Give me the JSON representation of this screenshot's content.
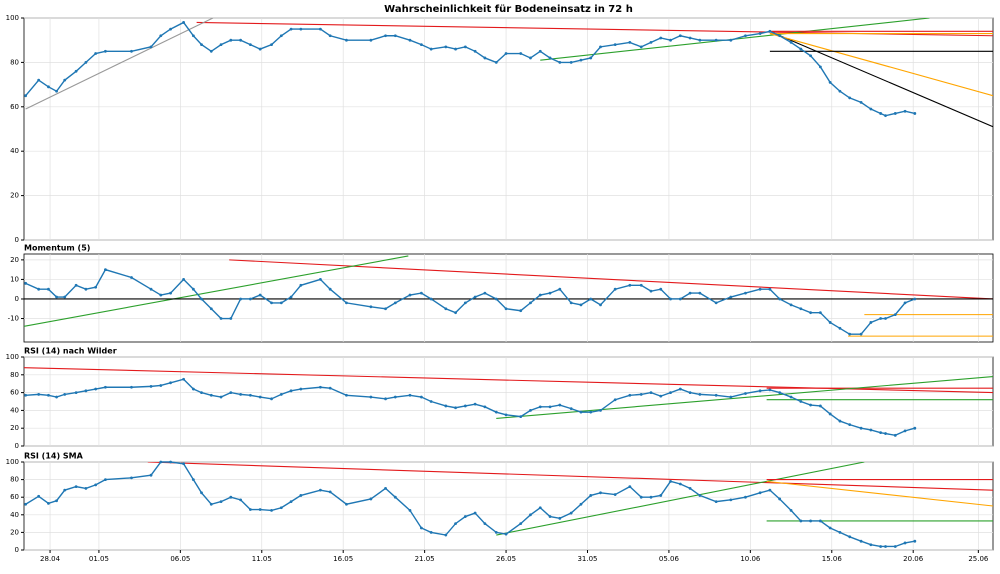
{
  "chart_data": [
    {
      "type": "line",
      "title": "Wahrscheinlichkeit für Bodeneinsatz in 72 h",
      "grid": true,
      "xlim": [
        -1.6,
        57.9
      ],
      "ylim": [
        0,
        100
      ],
      "yticks": [
        0,
        20,
        40,
        60,
        80,
        100
      ],
      "x": [
        -1.5,
        -0.7,
        -0.1,
        0.4,
        0.9,
        1.6,
        2.2,
        2.8,
        3.4,
        5.0,
        6.2,
        6.8,
        7.4,
        8.2,
        8.8,
        9.3,
        9.9,
        10.5,
        11.1,
        11.7,
        12.3,
        12.9,
        13.6,
        14.2,
        14.8,
        15.4,
        16.6,
        17.2,
        18.2,
        19.7,
        20.6,
        21.2,
        22.1,
        22.8,
        23.4,
        24.3,
        24.9,
        25.5,
        26.1,
        26.7,
        27.4,
        28.0,
        28.9,
        29.5,
        30.1,
        30.7,
        31.3,
        32.0,
        32.6,
        33.2,
        33.8,
        34.7,
        35.6,
        36.3,
        36.9,
        37.5,
        38.1,
        38.7,
        39.3,
        39.9,
        40.9,
        41.8,
        42.7,
        43.6,
        44.2,
        44.8,
        45.5,
        46.1,
        46.7,
        47.3,
        47.9,
        48.5,
        49.1,
        49.8,
        50.4,
        51.0,
        51.3,
        51.9,
        52.5,
        53.1
      ],
      "series": [
        {
          "color": "#1f77b4",
          "values": [
            65,
            72,
            69,
            67,
            72,
            76,
            80,
            84,
            85,
            85,
            87,
            92,
            95,
            98,
            92,
            88,
            85,
            88,
            90,
            90,
            88,
            86,
            88,
            92,
            95,
            95,
            95,
            92,
            90,
            90,
            92,
            92,
            90,
            88,
            86,
            87,
            86,
            87,
            85,
            82,
            80,
            84,
            84,
            82,
            85,
            82,
            80,
            80,
            81,
            82,
            87,
            88,
            89,
            87,
            89,
            91,
            90,
            92,
            91,
            90,
            90,
            90,
            92,
            93,
            94,
            92,
            89,
            86,
            83,
            78,
            71,
            67,
            64,
            62,
            59,
            57,
            56,
            57,
            58,
            57
          ]
        }
      ],
      "trendlines": [
        {
          "color": "#e31a1c",
          "x": [
            9,
            57.9
          ],
          "y": [
            98,
            92
          ]
        },
        {
          "color": "#999999",
          "x": [
            -1.5,
            10
          ],
          "y": [
            59,
            100
          ]
        },
        {
          "color": "#2ca02c",
          "x": [
            30.1,
            54.0
          ],
          "y": [
            81,
            100
          ]
        },
        {
          "color": "#000000",
          "x": [
            44.2,
            57.9
          ],
          "y": [
            94,
            51
          ]
        },
        {
          "color": "#ffa500",
          "x": [
            44.2,
            57.9
          ],
          "y": [
            93,
            65
          ]
        },
        {
          "color": "#000000",
          "x": [
            44.2,
            57.9
          ],
          "y": [
            85,
            85
          ]
        },
        {
          "color": "#ffa500",
          "x": [
            44.2,
            57.9
          ],
          "y": [
            93,
            93
          ]
        },
        {
          "color": "#e31a1c",
          "x": [
            44.2,
            57.9
          ],
          "y": [
            94,
            94
          ]
        }
      ]
    },
    {
      "type": "line",
      "title": "Momentum (5)",
      "grid": true,
      "xlim": [
        -1.6,
        57.9
      ],
      "ylim": [
        -22,
        23
      ],
      "yticks": [
        -10,
        0,
        10,
        20
      ],
      "x": [
        -1.5,
        -0.7,
        -0.1,
        0.4,
        0.9,
        1.6,
        2.2,
        2.8,
        3.4,
        5.0,
        6.2,
        6.8,
        7.4,
        8.2,
        8.8,
        9.3,
        9.9,
        10.5,
        11.1,
        11.7,
        12.3,
        12.9,
        13.6,
        14.2,
        14.8,
        15.4,
        16.6,
        17.2,
        18.2,
        19.7,
        20.6,
        21.2,
        22.1,
        22.8,
        23.4,
        24.3,
        24.9,
        25.5,
        26.1,
        26.7,
        27.4,
        28.0,
        28.9,
        29.5,
        30.1,
        30.7,
        31.3,
        32.0,
        32.6,
        33.2,
        33.8,
        34.7,
        35.6,
        36.3,
        36.9,
        37.5,
        38.1,
        38.7,
        39.3,
        39.9,
        40.9,
        41.8,
        42.7,
        43.6,
        44.2,
        44.8,
        45.5,
        46.1,
        46.7,
        47.3,
        47.9,
        48.5,
        49.1,
        49.8,
        50.4,
        51.0,
        51.3,
        51.9,
        52.5,
        53.1
      ],
      "series": [
        {
          "color": "#1f77b4",
          "values": [
            8,
            5,
            5,
            1,
            1,
            7,
            5,
            6,
            15,
            11,
            5,
            2,
            3,
            10,
            5,
            0,
            -5,
            -10,
            -10,
            0,
            0,
            2,
            -2,
            -2,
            1,
            7,
            10,
            5,
            -2,
            -4,
            -5,
            -2,
            2,
            3,
            0,
            -5,
            -7,
            -2,
            1,
            3,
            0,
            -5,
            -6,
            -2,
            2,
            3,
            5,
            -2,
            -3,
            0,
            -3,
            5,
            7,
            7,
            4,
            5,
            0,
            0,
            3,
            3,
            -2,
            1,
            3,
            5,
            5,
            0,
            -3,
            -5,
            -7,
            -7,
            -12,
            -15,
            -18,
            -18,
            -12,
            -10,
            -10,
            -8,
            -2,
            0
          ]
        }
      ],
      "trendlines": [
        {
          "color": "#e31a1c",
          "x": [
            11,
            57.9
          ],
          "y": [
            20,
            0
          ]
        },
        {
          "color": "#2ca02c",
          "x": [
            -1.6,
            22
          ],
          "y": [
            -14,
            22
          ]
        },
        {
          "color": "#ffa500",
          "x": [
            50,
            57.9
          ],
          "y": [
            -8,
            -8
          ]
        },
        {
          "color": "#ffa500",
          "x": [
            49,
            57.9
          ],
          "y": [
            -19,
            -19
          ]
        },
        {
          "color": "#000000",
          "x": [
            -1.6,
            57.9
          ],
          "y": [
            0,
            0
          ]
        }
      ]
    },
    {
      "type": "line",
      "title": "RSI (14) nach Wilder",
      "grid": true,
      "xlim": [
        -1.6,
        57.9
      ],
      "ylim": [
        0,
        100
      ],
      "yticks": [
        0,
        20,
        40,
        60,
        80,
        100
      ],
      "x": [
        -1.5,
        -0.7,
        -0.1,
        0.4,
        0.9,
        1.6,
        2.2,
        2.8,
        3.4,
        5.0,
        6.2,
        6.8,
        7.4,
        8.2,
        8.8,
        9.3,
        9.9,
        10.5,
        11.1,
        11.7,
        12.3,
        12.9,
        13.6,
        14.2,
        14.8,
        15.4,
        16.6,
        17.2,
        18.2,
        19.7,
        20.6,
        21.2,
        22.1,
        22.8,
        23.4,
        24.3,
        24.9,
        25.5,
        26.1,
        26.7,
        27.4,
        28.0,
        28.9,
        29.5,
        30.1,
        30.7,
        31.3,
        32.0,
        32.6,
        33.2,
        33.8,
        34.7,
        35.6,
        36.3,
        36.9,
        37.5,
        38.1,
        38.7,
        39.3,
        39.9,
        40.9,
        41.8,
        42.7,
        43.6,
        44.2,
        44.8,
        45.5,
        46.1,
        46.7,
        47.3,
        47.9,
        48.5,
        49.1,
        49.8,
        50.4,
        51.0,
        51.3,
        51.9,
        52.5,
        53.1
      ],
      "series": [
        {
          "color": "#1f77b4",
          "values": [
            57,
            58,
            57,
            55,
            58,
            60,
            62,
            64,
            66,
            66,
            67,
            68,
            71,
            75,
            64,
            60,
            57,
            55,
            60,
            58,
            57,
            55,
            53,
            58,
            62,
            64,
            66,
            65,
            57,
            55,
            53,
            55,
            57,
            55,
            50,
            45,
            43,
            45,
            47,
            44,
            38,
            35,
            33,
            40,
            44,
            44,
            46,
            42,
            38,
            38,
            40,
            52,
            57,
            58,
            60,
            56,
            60,
            64,
            60,
            58,
            57,
            55,
            59,
            62,
            63,
            60,
            55,
            50,
            46,
            45,
            36,
            28,
            24,
            20,
            18,
            15,
            14,
            12,
            17,
            20
          ]
        }
      ],
      "trendlines": [
        {
          "color": "#e31a1c",
          "x": [
            -1.6,
            57.9
          ],
          "y": [
            88,
            60
          ]
        },
        {
          "color": "#e31a1c",
          "x": [
            44,
            57.9
          ],
          "y": [
            65,
            65
          ]
        },
        {
          "color": "#2ca02c",
          "x": [
            27.4,
            57.9
          ],
          "y": [
            31,
            78
          ]
        },
        {
          "color": "#2ca02c",
          "x": [
            44,
            57.9
          ],
          "y": [
            52,
            52
          ]
        }
      ]
    },
    {
      "type": "line",
      "title": "RSI (14) SMA",
      "grid": true,
      "xlim": [
        -1.6,
        57.9
      ],
      "ylim": [
        0,
        100
      ],
      "yticks": [
        0,
        20,
        40,
        60,
        80,
        100
      ],
      "xticks": [
        {
          "value": 0,
          "label": "28.04"
        },
        {
          "value": 3,
          "label": "01.05"
        },
        {
          "value": 8,
          "label": "06.05"
        },
        {
          "value": 13,
          "label": "11.05"
        },
        {
          "value": 18,
          "label": "16.05"
        },
        {
          "value": 23,
          "label": "21.05"
        },
        {
          "value": 28,
          "label": "26.05"
        },
        {
          "value": 33,
          "label": "31.05"
        },
        {
          "value": 38,
          "label": "05.06"
        },
        {
          "value": 43,
          "label": "10.06"
        },
        {
          "value": 48,
          "label": "15.06"
        },
        {
          "value": 53,
          "label": "20.06"
        },
        {
          "value": 57,
          "label": "25.06"
        }
      ],
      "x": [
        -1.5,
        -0.7,
        -0.1,
        0.4,
        0.9,
        1.6,
        2.2,
        2.8,
        3.4,
        5.0,
        6.2,
        6.8,
        7.4,
        8.2,
        8.8,
        9.3,
        9.9,
        10.5,
        11.1,
        11.7,
        12.3,
        12.9,
        13.6,
        14.2,
        14.8,
        15.4,
        16.6,
        17.2,
        18.2,
        19.7,
        20.6,
        21.2,
        22.1,
        22.8,
        23.4,
        24.3,
        24.9,
        25.5,
        26.1,
        26.7,
        27.4,
        28.0,
        28.9,
        29.5,
        30.1,
        30.7,
        31.3,
        32.0,
        32.6,
        33.2,
        33.8,
        34.7,
        35.6,
        36.3,
        36.9,
        37.5,
        38.1,
        38.7,
        39.3,
        39.9,
        40.9,
        41.8,
        42.7,
        43.6,
        44.2,
        44.8,
        45.5,
        46.1,
        46.7,
        47.3,
        47.9,
        48.5,
        49.1,
        49.8,
        50.4,
        51.0,
        51.3,
        51.9,
        52.5,
        53.1
      ],
      "series": [
        {
          "color": "#1f77b4",
          "values": [
            52,
            61,
            53,
            56,
            68,
            72,
            70,
            74,
            80,
            82,
            85,
            100,
            100,
            98,
            80,
            65,
            52,
            55,
            60,
            57,
            46,
            46,
            45,
            48,
            55,
            62,
            68,
            66,
            52,
            58,
            70,
            60,
            45,
            25,
            20,
            17,
            30,
            38,
            42,
            30,
            20,
            18,
            30,
            40,
            48,
            38,
            36,
            42,
            52,
            62,
            65,
            63,
            72,
            60,
            60,
            62,
            78,
            75,
            70,
            62,
            55,
            57,
            60,
            65,
            68,
            58,
            45,
            33,
            33,
            33,
            25,
            20,
            15,
            10,
            6,
            4,
            4,
            4,
            8,
            10
          ]
        }
      ],
      "trendlines": [
        {
          "color": "#e31a1c",
          "x": [
            6,
            57.9
          ],
          "y": [
            100,
            68
          ]
        },
        {
          "color": "#2ca02c",
          "x": [
            27.4,
            50
          ],
          "y": [
            17,
            100
          ]
        },
        {
          "color": "#ffa500",
          "x": [
            44,
            57.9
          ],
          "y": [
            78,
            50
          ]
        },
        {
          "color": "#2ca02c",
          "x": [
            44,
            57.9
          ],
          "y": [
            33,
            33
          ]
        },
        {
          "color": "#e31a1c",
          "x": [
            44,
            57.9
          ],
          "y": [
            80,
            80
          ]
        }
      ]
    }
  ]
}
